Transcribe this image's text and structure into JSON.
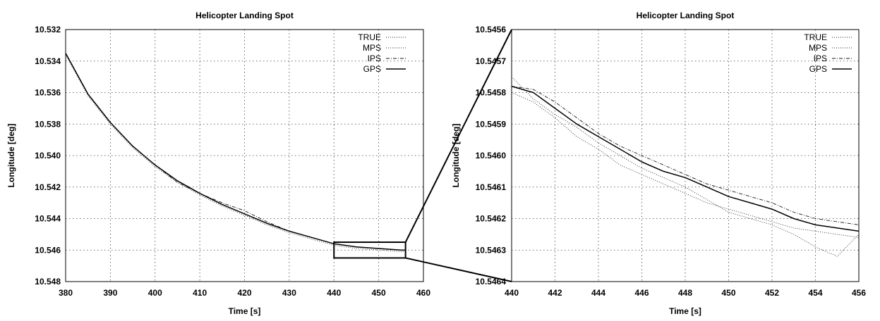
{
  "chart_data": [
    {
      "type": "line",
      "title": "Helicopter Landing Spot",
      "xlabel": "Time [s]",
      "ylabel": "Longitude [deg]",
      "xlim": [
        380,
        460
      ],
      "ylim": [
        10.532,
        10.548
      ],
      "y_inverted": true,
      "grid": true,
      "legend_placement": "top-right",
      "x_ticks": [
        "380",
        "390",
        "400",
        "410",
        "420",
        "430",
        "440",
        "450",
        "460"
      ],
      "y_ticks": [
        "10.532",
        "10.534",
        "10.536",
        "10.538",
        "10.540",
        "10.542",
        "10.544",
        "10.546",
        "10.548"
      ],
      "series": [
        {
          "name": "TRUE",
          "style": "dotted",
          "x": [
            380,
            385,
            390,
            395,
            400,
            405,
            410,
            415,
            420,
            425,
            430,
            435,
            440,
            445,
            450,
            455,
            456
          ],
          "y": [
            10.5335,
            10.5361,
            10.5379,
            10.5394,
            10.5406,
            10.5416,
            10.5424,
            10.5431,
            10.5437,
            10.5443,
            10.5448,
            10.5452,
            10.5456,
            10.5458,
            10.5459,
            10.546,
            10.546
          ]
        },
        {
          "name": "MPS",
          "style": "dotted",
          "x": [
            380,
            385,
            390,
            395,
            400,
            405,
            410,
            415,
            420,
            425,
            430,
            435,
            440,
            445,
            450,
            455,
            456
          ],
          "y": [
            10.5336,
            10.5362,
            10.538,
            10.5395,
            10.5407,
            10.5417,
            10.5425,
            10.5432,
            10.5438,
            10.5444,
            10.5449,
            10.5453,
            10.5457,
            10.5459,
            10.546,
            10.5461,
            10.5461
          ]
        },
        {
          "name": "IPS",
          "style": "dashdot",
          "x": [
            380,
            385,
            390,
            395,
            400,
            405,
            410,
            415,
            420,
            425,
            430,
            435,
            440,
            445,
            450,
            455,
            456
          ],
          "y": [
            10.5335,
            10.5361,
            10.5379,
            10.5394,
            10.5406,
            10.5417,
            10.5424,
            10.543,
            10.5435,
            10.5442,
            10.5448,
            10.5452,
            10.5456,
            10.5458,
            10.5459,
            10.546,
            10.546
          ]
        },
        {
          "name": "GPS",
          "style": "solid",
          "x": [
            380,
            385,
            390,
            395,
            400,
            405,
            410,
            415,
            420,
            425,
            430,
            435,
            440,
            445,
            450,
            455,
            456
          ],
          "y": [
            10.5335,
            10.5361,
            10.5379,
            10.5394,
            10.5406,
            10.5416,
            10.5424,
            10.5431,
            10.5437,
            10.5443,
            10.5448,
            10.5452,
            10.5456,
            10.5458,
            10.5459,
            10.546,
            10.546
          ]
        }
      ],
      "zoom_region": {
        "x": [
          440,
          456
        ],
        "y": [
          10.5455,
          10.5465
        ]
      }
    },
    {
      "type": "line",
      "title": "Helicopter Landing Spot",
      "xlabel": "Time [s]",
      "ylabel": "Longitude [deg]",
      "xlim": [
        440,
        456
      ],
      "ylim": [
        10.5456,
        10.5464
      ],
      "y_inverted": true,
      "grid": true,
      "legend_placement": "top-right",
      "x_ticks": [
        "440",
        "442",
        "444",
        "446",
        "448",
        "450",
        "452",
        "454",
        "456"
      ],
      "y_ticks": [
        "10.5456",
        "10.5457",
        "10.5458",
        "10.5459",
        "10.5460",
        "10.5461",
        "10.5462",
        "10.5463",
        "10.5464"
      ],
      "series": [
        {
          "name": "TRUE",
          "style": "dotted",
          "x": [
            440,
            441,
            442,
            443,
            444,
            445,
            446,
            447,
            448,
            449,
            450,
            451,
            452,
            453,
            454,
            455,
            456
          ],
          "y": [
            10.5458,
            10.54583,
            10.54588,
            10.54594,
            10.54598,
            10.54603,
            10.54606,
            10.54609,
            10.54612,
            10.54615,
            10.54617,
            10.54619,
            10.54621,
            10.54623,
            10.54624,
            10.54625,
            10.54626
          ]
        },
        {
          "name": "MPS",
          "style": "dotted",
          "x": [
            440,
            441,
            442,
            443,
            444,
            445,
            446,
            447,
            448,
            449,
            450,
            451,
            452,
            453,
            454,
            455,
            456
          ],
          "y": [
            10.54575,
            10.54582,
            10.54587,
            10.54591,
            10.54596,
            10.546,
            10.54604,
            10.54607,
            10.5461,
            10.54614,
            10.54618,
            10.5462,
            10.54622,
            10.54625,
            10.54629,
            10.54632,
            10.54625
          ]
        },
        {
          "name": "IPS",
          "style": "dashdot",
          "x": [
            440,
            441,
            442,
            443,
            444,
            445,
            446,
            447,
            448,
            449,
            450,
            451,
            452,
            453,
            454,
            455,
            456
          ],
          "y": [
            10.54578,
            10.54579,
            10.54583,
            10.54588,
            10.54593,
            10.54597,
            10.546,
            10.54603,
            10.54606,
            10.54609,
            10.54611,
            10.54613,
            10.54615,
            10.54618,
            10.5462,
            10.54621,
            10.54622
          ]
        },
        {
          "name": "GPS",
          "style": "solid",
          "x": [
            440,
            441,
            442,
            443,
            444,
            445,
            446,
            447,
            448,
            449,
            450,
            451,
            452,
            453,
            454,
            455,
            456
          ],
          "y": [
            10.54578,
            10.5458,
            10.54585,
            10.5459,
            10.54594,
            10.54598,
            10.54602,
            10.54605,
            10.54607,
            10.5461,
            10.54613,
            10.54615,
            10.54617,
            10.5462,
            10.54622,
            10.54623,
            10.54624
          ]
        }
      ]
    }
  ]
}
